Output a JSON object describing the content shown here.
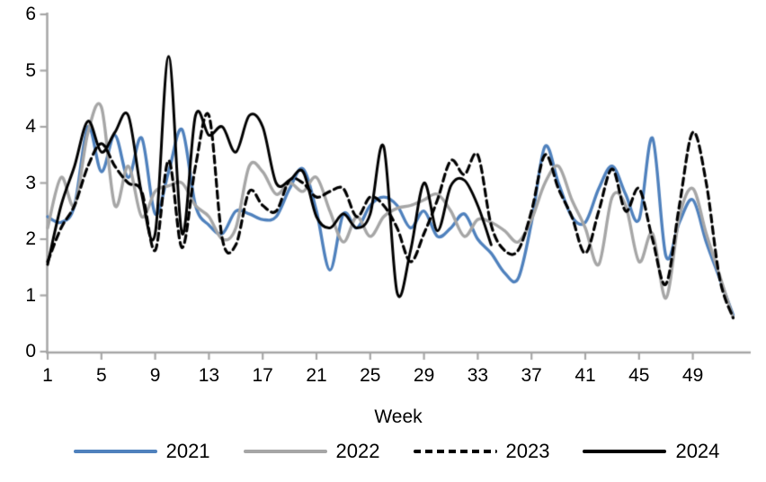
{
  "chart_data": {
    "type": "line",
    "xlabel": "Week",
    "x_ticks": [
      1,
      5,
      9,
      13,
      17,
      21,
      25,
      29,
      33,
      37,
      41,
      45,
      49
    ],
    "x_tick_labels": [
      "1",
      "5",
      "9",
      "13",
      "17",
      "21",
      "25",
      "29",
      "33",
      "37",
      "41",
      "45",
      "49"
    ],
    "y_ticks": [
      0,
      1,
      2,
      3,
      4,
      5,
      6
    ],
    "y_tick_labels": [
      "0",
      "1",
      "2",
      "3",
      "4",
      "5",
      "6"
    ],
    "ylim": [
      0,
      6
    ],
    "xlim": [
      1,
      52
    ],
    "grid": false,
    "legend_position": "bottom",
    "axis_color": "#a6a6a6",
    "weeks_start": 1,
    "series": [
      {
        "name": "2021",
        "color": "#4f81bd",
        "style": "solid",
        "line_width": 3.4,
        "values": [
          2.4,
          2.3,
          2.6,
          4.0,
          3.2,
          3.85,
          3.1,
          3.8,
          2.45,
          3.2,
          3.95,
          2.6,
          2.25,
          2.1,
          2.5,
          2.45,
          2.35,
          2.4,
          2.9,
          3.25,
          2.5,
          1.45,
          2.45,
          2.2,
          2.6,
          2.75,
          2.6,
          2.2,
          2.5,
          2.05,
          2.2,
          2.45,
          2.0,
          1.75,
          1.4,
          1.3,
          2.3,
          3.65,
          3.0,
          2.4,
          2.3,
          2.9,
          3.3,
          2.8,
          2.35,
          3.8,
          1.7,
          2.3,
          2.7,
          1.95,
          1.3,
          0.65
        ]
      },
      {
        "name": "2022",
        "color": "#a6a6a6",
        "style": "solid",
        "line_width": 3.4,
        "values": [
          2.2,
          3.1,
          2.6,
          3.9,
          4.35,
          2.6,
          3.3,
          2.4,
          2.85,
          2.95,
          3.0,
          2.6,
          2.4,
          2.0,
          2.2,
          3.3,
          3.2,
          2.8,
          3.0,
          2.85,
          3.1,
          2.5,
          1.95,
          2.4,
          2.05,
          2.4,
          2.55,
          2.6,
          2.7,
          2.8,
          2.5,
          2.05,
          2.35,
          2.3,
          2.15,
          1.95,
          2.35,
          3.0,
          3.3,
          2.7,
          2.2,
          1.55,
          2.75,
          2.6,
          1.6,
          2.1,
          0.95,
          2.4,
          2.9,
          2.1,
          1.35,
          0.6
        ]
      },
      {
        "name": "2023",
        "color": "#000000",
        "style": "dashed",
        "line_width": 3.2,
        "values": [
          1.6,
          2.2,
          2.6,
          3.3,
          3.7,
          3.3,
          3.0,
          2.85,
          1.8,
          3.4,
          1.85,
          3.3,
          4.2,
          2.0,
          1.9,
          2.85,
          2.6,
          2.5,
          3.05,
          3.0,
          2.75,
          2.85,
          2.9,
          2.4,
          2.75,
          2.6,
          2.2,
          1.6,
          2.1,
          2.7,
          3.4,
          3.15,
          3.5,
          2.25,
          1.8,
          1.8,
          2.5,
          3.5,
          2.9,
          2.4,
          1.75,
          2.5,
          3.25,
          2.5,
          2.9,
          2.0,
          1.2,
          2.6,
          3.9,
          3.0,
          1.3,
          0.6
        ]
      },
      {
        "name": "2024",
        "color": "#000000",
        "style": "solid",
        "line_width": 3.0,
        "values": [
          1.55,
          2.6,
          3.3,
          4.1,
          3.55,
          3.9,
          4.2,
          2.8,
          2.1,
          5.25,
          2.1,
          4.2,
          3.85,
          4.0,
          3.55,
          4.2,
          4.0,
          3.0,
          3.05,
          3.2,
          2.4,
          2.2,
          2.45,
          2.2,
          2.45,
          3.65,
          1.05,
          1.8,
          3.0,
          2.15,
          2.95,
          3.05,
          2.6,
          1.9
        ]
      }
    ]
  }
}
